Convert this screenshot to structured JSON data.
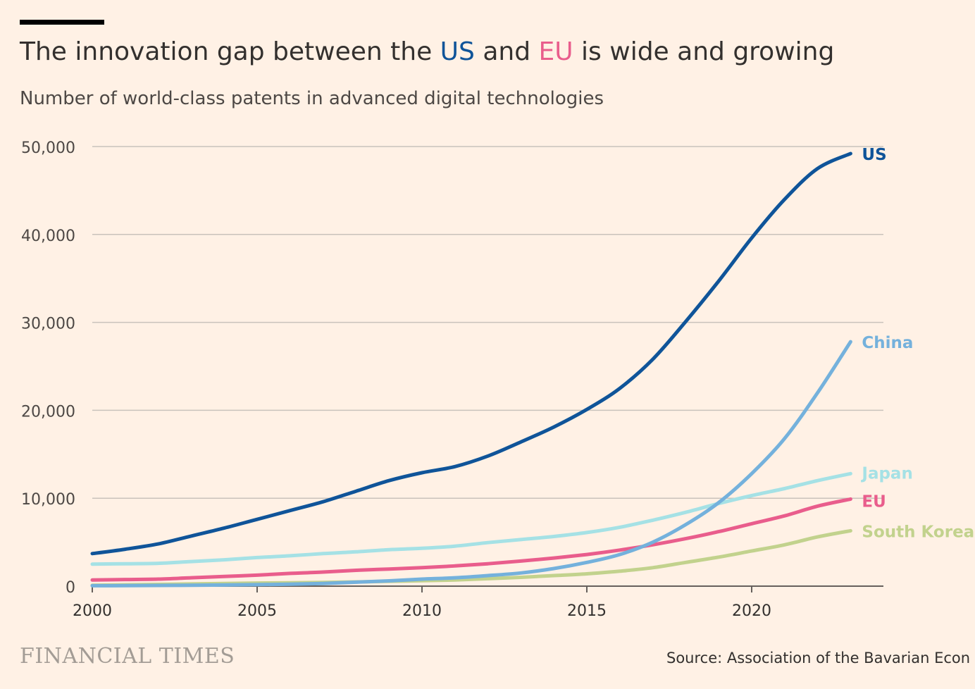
{
  "header": {
    "title_pre": "The innovation gap between the ",
    "title_us": "US",
    "title_mid": " and ",
    "title_eu": "EU",
    "title_post": " is wide and growing",
    "subtitle": "Number of world-class patents in advanced digital technologies"
  },
  "footer": {
    "brand": "FINANCIAL TIMES",
    "source": "Source: Association of the Bavarian Econ"
  },
  "chart_data": {
    "type": "line",
    "title": "The innovation gap between the US and EU is wide and growing",
    "subtitle": "Number of world-class patents in advanced digital technologies",
    "ylim": [
      0,
      50000
    ],
    "xlim": [
      2000,
      2024
    ],
    "grid": true,
    "legend": "inline labels at line ends",
    "y_ticks": [
      {
        "value": 0,
        "label": "0"
      },
      {
        "value": 10000,
        "label": "10,000"
      },
      {
        "value": 20000,
        "label": "20,000"
      },
      {
        "value": 30000,
        "label": "30,000"
      },
      {
        "value": 40000,
        "label": "40,000"
      },
      {
        "value": 50000,
        "label": "50,000"
      }
    ],
    "x_ticks": [
      {
        "value": 2000,
        "label": "2000"
      },
      {
        "value": 2005,
        "label": "2005"
      },
      {
        "value": 2010,
        "label": "2010"
      },
      {
        "value": 2015,
        "label": "2015"
      },
      {
        "value": 2020,
        "label": "2020"
      }
    ],
    "x": [
      2000,
      2001,
      2002,
      2003,
      2004,
      2005,
      2006,
      2007,
      2008,
      2009,
      2010,
      2011,
      2012,
      2013,
      2014,
      2015,
      2016,
      2017,
      2018,
      2019,
      2020,
      2021,
      2022,
      2023
    ],
    "series": [
      {
        "name": "South Korea",
        "color": "#c2d28d",
        "values": [
          100,
          150,
          200,
          250,
          300,
          350,
          380,
          420,
          480,
          550,
          620,
          700,
          850,
          1000,
          1200,
          1400,
          1700,
          2100,
          2700,
          3300,
          4000,
          4700,
          5600,
          6300
        ]
      },
      {
        "name": "EU",
        "color": "#e95d8c",
        "values": [
          700,
          750,
          800,
          950,
          1100,
          1250,
          1450,
          1600,
          1800,
          1950,
          2100,
          2300,
          2550,
          2850,
          3200,
          3600,
          4100,
          4700,
          5400,
          6200,
          7100,
          8000,
          9100,
          9900
        ]
      },
      {
        "name": "Japan",
        "color": "#a5e1e5",
        "values": [
          2500,
          2550,
          2600,
          2800,
          3000,
          3250,
          3450,
          3700,
          3900,
          4150,
          4300,
          4550,
          4950,
          5300,
          5650,
          6100,
          6700,
          7500,
          8400,
          9400,
          10300,
          11100,
          12000,
          12800
        ]
      },
      {
        "name": "China",
        "color": "#74b1dc",
        "values": [
          50,
          60,
          80,
          100,
          130,
          170,
          220,
          300,
          450,
          600,
          800,
          950,
          1200,
          1500,
          2000,
          2700,
          3600,
          5000,
          7000,
          9500,
          12800,
          16800,
          22000,
          27800
        ]
      },
      {
        "name": "US",
        "color": "#0f5499",
        "values": [
          3700,
          4200,
          4800,
          5700,
          6600,
          7600,
          8600,
          9600,
          10800,
          12000,
          12900,
          13600,
          14800,
          16400,
          18100,
          20100,
          22500,
          25800,
          30100,
          34700,
          39600,
          44000,
          47500,
          49200
        ]
      }
    ]
  }
}
